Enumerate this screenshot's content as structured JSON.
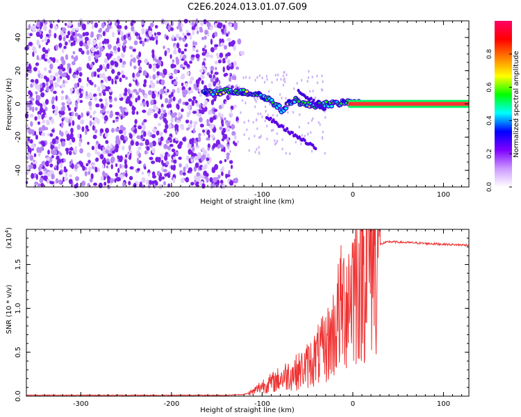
{
  "title": "C2E6.2024.013.01.07.G09",
  "chart_data": [
    {
      "type": "heatmap",
      "title": "C2E6.2024.013.01.07.G09",
      "xlabel": "Height of straight line (km)",
      "ylabel": "Frequency (Hz)",
      "xlim": [
        -360,
        128
      ],
      "ylim": [
        -50,
        50
      ],
      "xticks": [
        -300,
        -200,
        -100,
        0,
        100
      ],
      "yticks": [
        -40,
        -20,
        0,
        20,
        40
      ],
      "xtick_labels": [
        "-300",
        "-200",
        "-100",
        "0",
        "100"
      ],
      "ytick_labels": [
        "-40",
        "-20",
        "0",
        "20",
        "40"
      ],
      "colorbar": {
        "label": "Normalized spectral amplitude",
        "range": [
          0.0,
          1.0
        ],
        "ticks": [
          0.0,
          0.2,
          0.4,
          0.6,
          0.8
        ],
        "tick_labels": [
          "0.0",
          "0.2",
          "0.4",
          "0.6",
          "0.8"
        ],
        "colormap": [
          "#ffffff",
          "#cc99ff",
          "#8000ff",
          "#0000ff",
          "#00ffff",
          "#00ff00",
          "#ffff00",
          "#ff8000",
          "#ff0000",
          "#ff0066"
        ]
      },
      "noise_region_x": [
        -360,
        -140
      ],
      "signal_track": [
        {
          "x": -165,
          "f": 7
        },
        {
          "x": -150,
          "f": 7
        },
        {
          "x": -135,
          "f": 8
        },
        {
          "x": -120,
          "f": 7
        },
        {
          "x": -105,
          "f": 6
        },
        {
          "x": -90,
          "f": 2
        },
        {
          "x": -78,
          "f": -4
        },
        {
          "x": -65,
          "f": 3
        },
        {
          "x": -55,
          "f": 0
        },
        {
          "x": -45,
          "f": -1
        },
        {
          "x": -35,
          "f": 0
        },
        {
          "x": -20,
          "f": 0
        },
        {
          "x": -5,
          "f": 1
        },
        {
          "x": 10,
          "f": 0
        },
        {
          "x": 128,
          "f": 0
        }
      ]
    },
    {
      "type": "line",
      "xlabel": "Height of straight line (km)",
      "ylabel": "SNR (10 * v/v)",
      "y_multiplier": "(x10",
      "y_multiplier_exp": "4",
      "y_multiplier_close": ")",
      "xlim": [
        -360,
        128
      ],
      "ylim": [
        0,
        1.9
      ],
      "xticks": [
        -300,
        -200,
        -100,
        0,
        100
      ],
      "yticks": [
        0.0,
        0.5,
        1.0,
        1.5
      ],
      "xtick_labels": [
        "-300",
        "-200",
        "-100",
        "0",
        "100"
      ],
      "ytick_labels": [
        "0.0",
        "0.5",
        "1.0",
        "1.5"
      ],
      "line_color": "#ee3333",
      "series": [
        {
          "name": "SNR",
          "x": [
            -360,
            -300,
            -200,
            -140,
            -120,
            -110,
            -100,
            -90,
            -80,
            -70,
            -60,
            -50,
            -40,
            -30,
            -20,
            -15,
            -10,
            -5,
            0,
            5,
            10,
            15,
            20,
            25,
            30,
            40,
            60,
            80,
            100,
            128
          ],
          "y": [
            0.01,
            0.01,
            0.01,
            0.01,
            0.02,
            0.05,
            0.12,
            0.15,
            0.2,
            0.25,
            0.28,
            0.35,
            0.45,
            0.55,
            0.75,
            0.95,
            1.05,
            1.15,
            1.3,
            1.35,
            1.45,
            1.55,
            1.65,
            1.7,
            1.73,
            1.76,
            1.75,
            1.74,
            1.73,
            1.72
          ]
        }
      ]
    }
  ]
}
